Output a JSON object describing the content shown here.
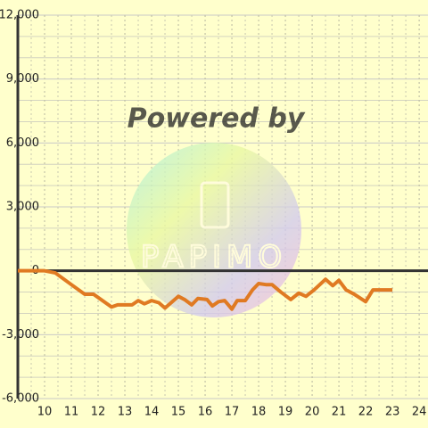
{
  "chart_data": {
    "type": "line",
    "watermark": "Powered by",
    "logo_text": "PAPIMO",
    "x": [
      9,
      10,
      10.4,
      11,
      11.5,
      11.83,
      12.5,
      12.73,
      13.27,
      13.5,
      13.73,
      14,
      14.27,
      14.5,
      15,
      15.23,
      15.5,
      15.73,
      16.07,
      16.27,
      16.5,
      16.73,
      17,
      17.2,
      17.5,
      17.77,
      18,
      18.27,
      18.5,
      18.83,
      19.2,
      19.5,
      19.77,
      20.07,
      20.5,
      20.77,
      21,
      21.27,
      21.57,
      22,
      22.27,
      23
    ],
    "values": [
      0,
      0,
      -100,
      -650,
      -1100,
      -1100,
      -1700,
      -1600,
      -1600,
      -1400,
      -1550,
      -1400,
      -1500,
      -1750,
      -1200,
      -1350,
      -1600,
      -1300,
      -1350,
      -1650,
      -1450,
      -1400,
      -1800,
      -1400,
      -1400,
      -900,
      -600,
      -650,
      -650,
      -1000,
      -1350,
      -1050,
      -1200,
      -900,
      -400,
      -700,
      -450,
      -900,
      -1100,
      -1450,
      -900,
      -900
    ],
    "color": "#e07a22",
    "xlim": [
      9,
      24.33
    ],
    "xticks": [
      10,
      11,
      12,
      13,
      14,
      15,
      16,
      17,
      18,
      19,
      20,
      21,
      22,
      23,
      24
    ],
    "ylim": [
      -6000,
      12000
    ],
    "yticks": [
      {
        "value": -6000,
        "label": "-6,000"
      },
      {
        "value": -3000,
        "label": "-3,000"
      },
      0,
      {
        "value": 3000,
        "label": "3,000"
      },
      {
        "value": 6000,
        "label": "6,000"
      },
      {
        "value": 9000,
        "label": "9,000"
      },
      {
        "value": 12000,
        "label": "12,000"
      }
    ],
    "grid": true
  }
}
